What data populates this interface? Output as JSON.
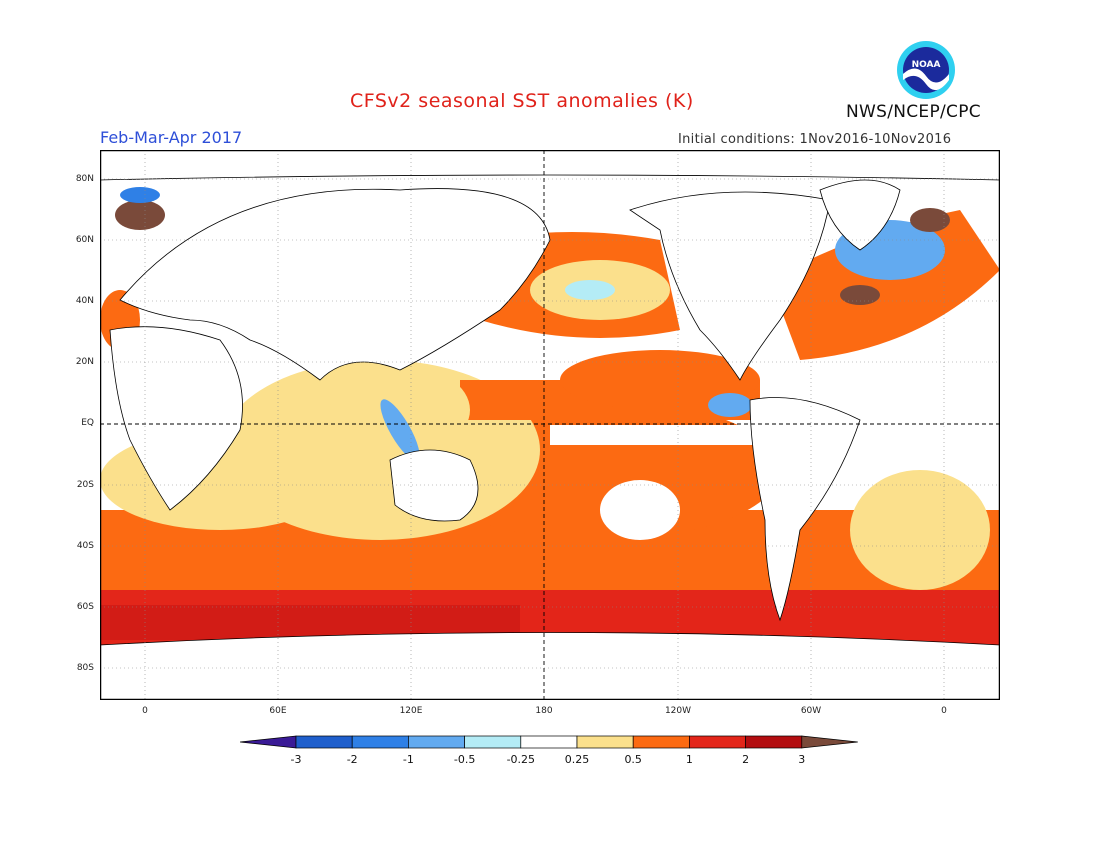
{
  "header": {
    "title": "CFSv2 seasonal SST anomalies (K)",
    "period": "Feb-Mar-Apr 2017",
    "initial_conditions": "Initial conditions: 1Nov2016-10Nov2016",
    "agency": "NWS/NCEP/CPC",
    "logo_text": "NOAA"
  },
  "map": {
    "lat_labels": [
      "80N",
      "60N",
      "40N",
      "20N",
      "EQ",
      "20S",
      "40S",
      "60S",
      "80S"
    ],
    "lon_labels": [
      "0",
      "60E",
      "120E",
      "180",
      "120W",
      "60W",
      "0"
    ],
    "dateline_marked": true,
    "equator_marked": true,
    "grid": "dotted"
  },
  "colorbar": {
    "tick_labels": [
      "-3",
      "-2",
      "-1",
      "-0.5",
      "-0.25",
      "0.25",
      "0.5",
      "1",
      "2",
      "3"
    ],
    "colors": [
      "#3a1a96",
      "#1f5fcc",
      "#2f80e6",
      "#62aaf0",
      "#b4ecf6",
      "#ffffff",
      "#fbe08c",
      "#fc6a12",
      "#e3261a",
      "#b30d10",
      "#7a4a3a"
    ],
    "unit": "K"
  }
}
